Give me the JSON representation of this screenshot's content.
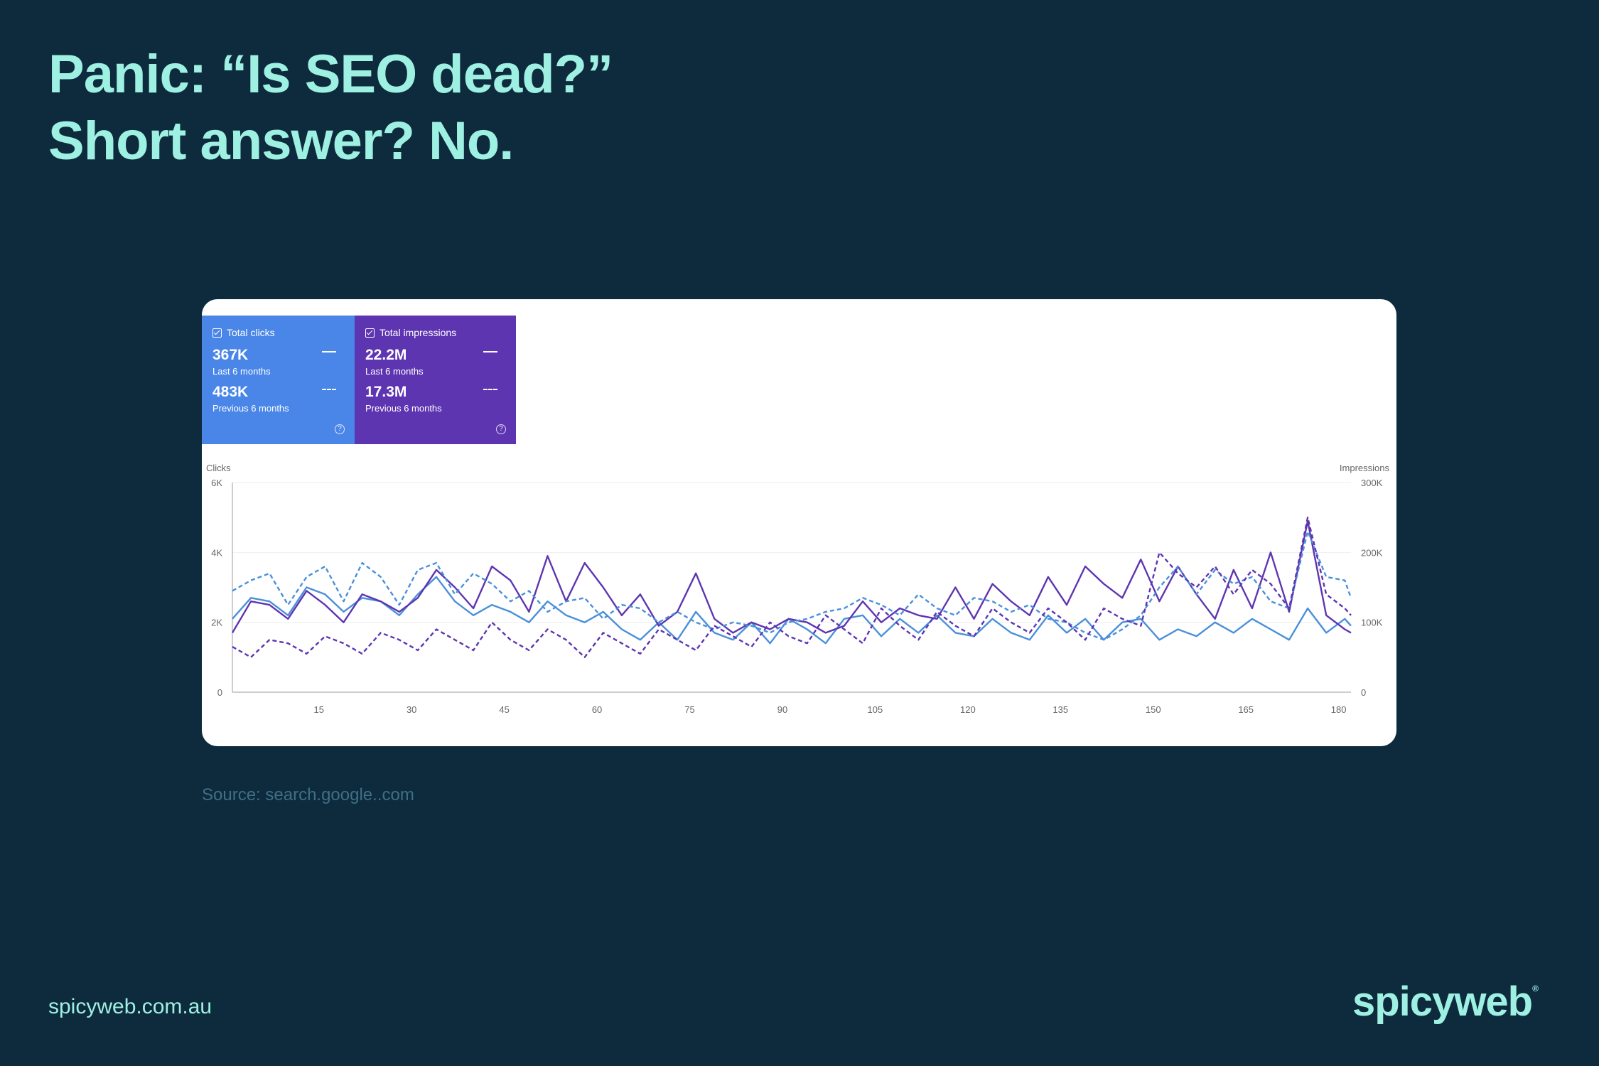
{
  "headline": {
    "line1": "Panic: “Is SEO dead?”",
    "line2": "Short answer? No."
  },
  "metrics": {
    "clicks": {
      "label": "Total clicks",
      "current_value": "367K",
      "current_period": "Last 6 months",
      "previous_value": "483K",
      "previous_period": "Previous 6 months",
      "color": "#4a86e8"
    },
    "impressions": {
      "label": "Total impressions",
      "current_value": "22.2M",
      "current_period": "Last 6 months",
      "previous_value": "17.3M",
      "previous_period": "Previous 6 months",
      "color": "#5e35b1"
    }
  },
  "source": "Source: search.google..com",
  "footer": {
    "url": "spicyweb.com.au",
    "logo": "spicyweb",
    "logo_mark": "®"
  },
  "chart_data": {
    "type": "line",
    "left_axis_label": "Clicks",
    "right_axis_label": "Impressions",
    "left_ylim": [
      0,
      6000
    ],
    "right_ylim": [
      0,
      300000
    ],
    "left_ticks": [
      "0",
      "2K",
      "4K",
      "6K"
    ],
    "right_ticks": [
      "0",
      "100K",
      "200K",
      "300K"
    ],
    "xlim": [
      1,
      182
    ],
    "x_ticks": [
      15,
      30,
      45,
      60,
      75,
      90,
      105,
      120,
      135,
      150,
      165,
      180
    ],
    "grid": true,
    "series": [
      {
        "axis": "left",
        "period": "current",
        "color": "#4a90d9",
        "dashed": false,
        "points": [
          [
            1,
            2100
          ],
          [
            4,
            2700
          ],
          [
            7,
            2600
          ],
          [
            10,
            2200
          ],
          [
            13,
            3000
          ],
          [
            16,
            2800
          ],
          [
            19,
            2300
          ],
          [
            22,
            2700
          ],
          [
            25,
            2600
          ],
          [
            28,
            2200
          ],
          [
            31,
            2800
          ],
          [
            34,
            3300
          ],
          [
            37,
            2600
          ],
          [
            40,
            2200
          ],
          [
            43,
            2500
          ],
          [
            46,
            2300
          ],
          [
            49,
            2000
          ],
          [
            52,
            2600
          ],
          [
            55,
            2200
          ],
          [
            58,
            2000
          ],
          [
            61,
            2300
          ],
          [
            64,
            1800
          ],
          [
            67,
            1500
          ],
          [
            70,
            2000
          ],
          [
            73,
            1500
          ],
          [
            76,
            2300
          ],
          [
            79,
            1700
          ],
          [
            82,
            1500
          ],
          [
            85,
            2000
          ],
          [
            88,
            1400
          ],
          [
            91,
            2100
          ],
          [
            94,
            1800
          ],
          [
            97,
            1400
          ],
          [
            100,
            2100
          ],
          [
            103,
            2200
          ],
          [
            106,
            1600
          ],
          [
            109,
            2100
          ],
          [
            112,
            1700
          ],
          [
            115,
            2200
          ],
          [
            118,
            1700
          ],
          [
            121,
            1600
          ],
          [
            124,
            2100
          ],
          [
            127,
            1700
          ],
          [
            130,
            1500
          ],
          [
            133,
            2200
          ],
          [
            136,
            1700
          ],
          [
            139,
            2100
          ],
          [
            142,
            1500
          ],
          [
            145,
            2000
          ],
          [
            148,
            2100
          ],
          [
            151,
            1500
          ],
          [
            154,
            1800
          ],
          [
            157,
            1600
          ],
          [
            160,
            2000
          ],
          [
            163,
            1700
          ],
          [
            166,
            2100
          ],
          [
            169,
            1800
          ],
          [
            172,
            1500
          ],
          [
            175,
            2400
          ],
          [
            178,
            1700
          ],
          [
            181,
            2100
          ],
          [
            182,
            1900
          ]
        ]
      },
      {
        "axis": "right",
        "period": "current",
        "color": "#5e35b1",
        "dashed": false,
        "points": [
          [
            1,
            85000
          ],
          [
            4,
            130000
          ],
          [
            7,
            125000
          ],
          [
            10,
            105000
          ],
          [
            13,
            145000
          ],
          [
            16,
            125000
          ],
          [
            19,
            100000
          ],
          [
            22,
            140000
          ],
          [
            25,
            130000
          ],
          [
            28,
            115000
          ],
          [
            31,
            135000
          ],
          [
            34,
            175000
          ],
          [
            37,
            150000
          ],
          [
            40,
            120000
          ],
          [
            43,
            180000
          ],
          [
            46,
            160000
          ],
          [
            49,
            115000
          ],
          [
            52,
            195000
          ],
          [
            55,
            130000
          ],
          [
            58,
            185000
          ],
          [
            61,
            150000
          ],
          [
            64,
            110000
          ],
          [
            67,
            140000
          ],
          [
            70,
            95000
          ],
          [
            73,
            115000
          ],
          [
            76,
            170000
          ],
          [
            79,
            105000
          ],
          [
            82,
            85000
          ],
          [
            85,
            100000
          ],
          [
            88,
            90000
          ],
          [
            91,
            105000
          ],
          [
            94,
            100000
          ],
          [
            97,
            85000
          ],
          [
            100,
            95000
          ],
          [
            103,
            130000
          ],
          [
            106,
            100000
          ],
          [
            109,
            120000
          ],
          [
            112,
            110000
          ],
          [
            115,
            105000
          ],
          [
            118,
            150000
          ],
          [
            121,
            105000
          ],
          [
            124,
            155000
          ],
          [
            127,
            130000
          ],
          [
            130,
            110000
          ],
          [
            133,
            165000
          ],
          [
            136,
            125000
          ],
          [
            139,
            180000
          ],
          [
            142,
            155000
          ],
          [
            145,
            135000
          ],
          [
            148,
            190000
          ],
          [
            151,
            130000
          ],
          [
            154,
            180000
          ],
          [
            157,
            140000
          ],
          [
            160,
            105000
          ],
          [
            163,
            175000
          ],
          [
            166,
            120000
          ],
          [
            169,
            200000
          ],
          [
            172,
            115000
          ],
          [
            175,
            245000
          ],
          [
            178,
            110000
          ],
          [
            181,
            90000
          ],
          [
            182,
            85000
          ]
        ]
      },
      {
        "axis": "left",
        "period": "previous",
        "color": "#4a90d9",
        "dashed": true,
        "points": [
          [
            1,
            2900
          ],
          [
            4,
            3200
          ],
          [
            7,
            3400
          ],
          [
            10,
            2500
          ],
          [
            13,
            3300
          ],
          [
            16,
            3600
          ],
          [
            19,
            2600
          ],
          [
            22,
            3700
          ],
          [
            25,
            3300
          ],
          [
            28,
            2500
          ],
          [
            31,
            3500
          ],
          [
            34,
            3700
          ],
          [
            37,
            2800
          ],
          [
            40,
            3400
          ],
          [
            43,
            3100
          ],
          [
            46,
            2600
          ],
          [
            49,
            2900
          ],
          [
            52,
            2300
          ],
          [
            55,
            2600
          ],
          [
            58,
            2700
          ],
          [
            61,
            2100
          ],
          [
            64,
            2500
          ],
          [
            67,
            2400
          ],
          [
            70,
            2000
          ],
          [
            73,
            2300
          ],
          [
            76,
            2000
          ],
          [
            79,
            1800
          ],
          [
            82,
            2000
          ],
          [
            85,
            1900
          ],
          [
            88,
            1700
          ],
          [
            91,
            2000
          ],
          [
            94,
            2100
          ],
          [
            97,
            2300
          ],
          [
            100,
            2400
          ],
          [
            103,
            2700
          ],
          [
            106,
            2500
          ],
          [
            109,
            2200
          ],
          [
            112,
            2800
          ],
          [
            115,
            2400
          ],
          [
            118,
            2200
          ],
          [
            121,
            2700
          ],
          [
            124,
            2600
          ],
          [
            127,
            2300
          ],
          [
            130,
            2500
          ],
          [
            133,
            2100
          ],
          [
            136,
            2000
          ],
          [
            139,
            1700
          ],
          [
            142,
            1500
          ],
          [
            145,
            1800
          ],
          [
            148,
            2200
          ],
          [
            151,
            3000
          ],
          [
            154,
            3600
          ],
          [
            157,
            2800
          ],
          [
            160,
            3500
          ],
          [
            163,
            3100
          ],
          [
            166,
            3300
          ],
          [
            169,
            2600
          ],
          [
            172,
            2400
          ],
          [
            175,
            4600
          ],
          [
            178,
            3300
          ],
          [
            181,
            3200
          ],
          [
            182,
            2700
          ]
        ]
      },
      {
        "axis": "right",
        "period": "previous",
        "color": "#5e35b1",
        "dashed": true,
        "points": [
          [
            1,
            65000
          ],
          [
            4,
            50000
          ],
          [
            7,
            75000
          ],
          [
            10,
            70000
          ],
          [
            13,
            55000
          ],
          [
            16,
            80000
          ],
          [
            19,
            70000
          ],
          [
            22,
            55000
          ],
          [
            25,
            85000
          ],
          [
            28,
            75000
          ],
          [
            31,
            60000
          ],
          [
            34,
            90000
          ],
          [
            37,
            75000
          ],
          [
            40,
            60000
          ],
          [
            43,
            100000
          ],
          [
            46,
            75000
          ],
          [
            49,
            60000
          ],
          [
            52,
            90000
          ],
          [
            55,
            75000
          ],
          [
            58,
            50000
          ],
          [
            61,
            85000
          ],
          [
            64,
            70000
          ],
          [
            67,
            55000
          ],
          [
            70,
            90000
          ],
          [
            73,
            75000
          ],
          [
            76,
            60000
          ],
          [
            79,
            95000
          ],
          [
            82,
            80000
          ],
          [
            85,
            65000
          ],
          [
            88,
            100000
          ],
          [
            91,
            80000
          ],
          [
            94,
            70000
          ],
          [
            97,
            110000
          ],
          [
            100,
            90000
          ],
          [
            103,
            70000
          ],
          [
            106,
            120000
          ],
          [
            109,
            95000
          ],
          [
            112,
            75000
          ],
          [
            115,
            115000
          ],
          [
            118,
            95000
          ],
          [
            121,
            80000
          ],
          [
            124,
            120000
          ],
          [
            127,
            100000
          ],
          [
            130,
            85000
          ],
          [
            133,
            120000
          ],
          [
            136,
            100000
          ],
          [
            139,
            75000
          ],
          [
            142,
            120000
          ],
          [
            145,
            105000
          ],
          [
            148,
            95000
          ],
          [
            151,
            200000
          ],
          [
            154,
            170000
          ],
          [
            157,
            150000
          ],
          [
            160,
            180000
          ],
          [
            163,
            140000
          ],
          [
            166,
            175000
          ],
          [
            169,
            155000
          ],
          [
            172,
            120000
          ],
          [
            175,
            250000
          ],
          [
            178,
            140000
          ],
          [
            181,
            120000
          ],
          [
            182,
            110000
          ]
        ]
      }
    ]
  }
}
